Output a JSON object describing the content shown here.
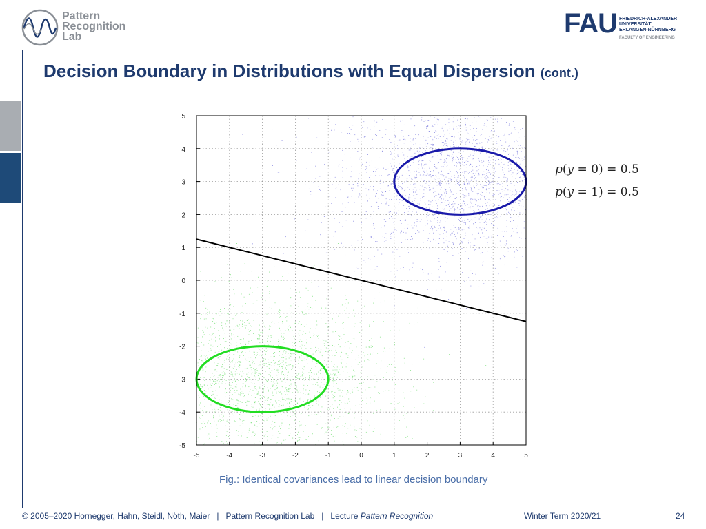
{
  "header": {
    "left_logo_text": [
      "Pattern",
      "Recognition",
      "Lab"
    ],
    "right_logo_text": {
      "word": "FAU",
      "lines": [
        "FRIEDRICH-ALEXANDER",
        "UNIVERSITÄT",
        "ERLANGEN-NÜRNBERG"
      ],
      "faculty": "FACULTY OF ENGINEERING"
    }
  },
  "slide": {
    "title": "Decision Boundary in Distributions with Equal Dispersion",
    "title_suffix": "(cont.)",
    "caption": "Fig.: Identical covariances lead to linear decision boundary",
    "formulas": [
      {
        "lhs": "p",
        "var": "y",
        "eq": "0",
        "rhs": "0.5"
      },
      {
        "lhs": "p",
        "var": "y",
        "eq": "1",
        "rhs": "0.5"
      }
    ]
  },
  "footer": {
    "copyright": "© 2005–2020 Hornegger, Hahn, Steidl, Nöth, Maier",
    "sep1": "|",
    "lab": "Pattern Recognition Lab",
    "sep2": "|",
    "lecture_prefix": "Lecture",
    "lecture_name": "Pattern Recognition",
    "term": "Winter Term 2020/21",
    "page": "24"
  },
  "chart_data": {
    "type": "scatter",
    "xlim": [
      -5,
      5
    ],
    "ylim": [
      -5,
      5
    ],
    "xticks": [
      -5,
      -4,
      -3,
      -2,
      -1,
      0,
      1,
      2,
      3,
      4,
      5
    ],
    "yticks": [
      -5,
      -4,
      -3,
      -2,
      -1,
      0,
      1,
      2,
      3,
      4,
      5
    ],
    "grid": true,
    "series": [
      {
        "class": "y=0",
        "color": "#3333cc",
        "mean": [
          3,
          3
        ],
        "ellipse_radii": [
          2,
          1
        ]
      },
      {
        "class": "y=1",
        "color": "#22cc22",
        "mean": [
          -3,
          -3
        ],
        "ellipse_radii": [
          2,
          1
        ]
      }
    ],
    "decision_boundary": {
      "color": "#000000",
      "x": [
        -5,
        5
      ],
      "y": [
        1.25,
        -1.25
      ]
    }
  }
}
